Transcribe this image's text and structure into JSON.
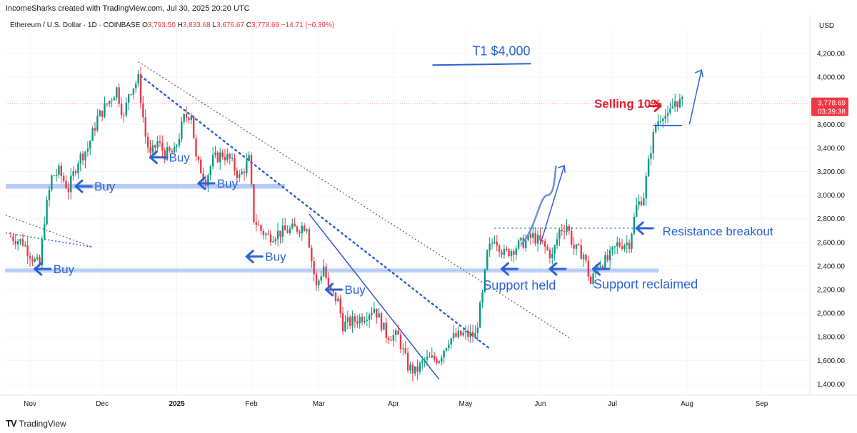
{
  "header": {
    "credit": "IncomeSharks created with TradingView.com, Jul 30, 2025 20:20 UTC",
    "symbol": "Ethereum / U.S. Dollar · 1D · COINBASE",
    "o_label": "O",
    "o_value": "3,793.50",
    "h_label": "H",
    "h_value": "3,833.68",
    "l_label": "L",
    "l_value": "3,676.67",
    "c_label": "C",
    "c_value": "3,778.69",
    "change": "−14.71 (−0.39%)",
    "currency": "USD"
  },
  "footer": {
    "brand": "TradingView",
    "logo": "TV"
  },
  "colors": {
    "up": "#089981",
    "down": "#f23645",
    "annotation": "#2a62d6",
    "selling": "#e5202f",
    "support": "#a9c2f5"
  },
  "chart_data": {
    "type": "candlestick",
    "y_axis": {
      "min": 1300,
      "max": 4300,
      "ticks": [
        "4,200.00",
        "4,000.00",
        "3,800.00",
        "3,600.00",
        "3,400.00",
        "3,200.00",
        "3,000.00",
        "2,800.00",
        "2,600.00",
        "2,400.00",
        "2,200.00",
        "2,000.00",
        "1,800.00",
        "1,600.00",
        "1,400.00"
      ]
    },
    "x_axis": {
      "ticks": [
        {
          "label": "Nov",
          "date": "2024-11-01"
        },
        {
          "label": "Dec",
          "date": "2024-12-01"
        },
        {
          "label": "2025",
          "date": "2025-01-01",
          "bold": true
        },
        {
          "label": "Feb",
          "date": "2025-02-01"
        },
        {
          "label": "Mar",
          "date": "2025-03-01"
        },
        {
          "label": "Apr",
          "date": "2025-04-01"
        },
        {
          "label": "May",
          "date": "2025-05-01"
        },
        {
          "label": "Jun",
          "date": "2025-06-01"
        },
        {
          "label": "Jul",
          "date": "2025-07-01"
        },
        {
          "label": "Aug",
          "date": "2025-08-01"
        },
        {
          "label": "Sep",
          "date": "2025-09-01"
        }
      ]
    },
    "current_price": {
      "value": 3778.69,
      "label": "3,778.69",
      "countdown": "03:39:38"
    },
    "price_path": [
      {
        "date": "2024-10-24",
        "price": 2650
      },
      {
        "date": "2024-10-29",
        "price": 2600
      },
      {
        "date": "2024-11-03",
        "price": 2440
      },
      {
        "date": "2024-11-05",
        "price": 2400
      },
      {
        "date": "2024-11-07",
        "price": 2800
      },
      {
        "date": "2024-11-10",
        "price": 3150
      },
      {
        "date": "2024-11-13",
        "price": 3200
      },
      {
        "date": "2024-11-17",
        "price": 3050
      },
      {
        "date": "2024-11-21",
        "price": 3300
      },
      {
        "date": "2024-11-25",
        "price": 3400
      },
      {
        "date": "2024-11-29",
        "price": 3650
      },
      {
        "date": "2024-12-04",
        "price": 3800
      },
      {
        "date": "2024-12-07",
        "price": 3900
      },
      {
        "date": "2024-12-10",
        "price": 3650
      },
      {
        "date": "2024-12-12",
        "price": 3870
      },
      {
        "date": "2024-12-16",
        "price": 3980
      },
      {
        "date": "2024-12-19",
        "price": 3500
      },
      {
        "date": "2024-12-21",
        "price": 3330
      },
      {
        "date": "2024-12-24",
        "price": 3450
      },
      {
        "date": "2024-12-27",
        "price": 3350
      },
      {
        "date": "2024-12-31",
        "price": 3360
      },
      {
        "date": "2025-01-04",
        "price": 3650
      },
      {
        "date": "2025-01-07",
        "price": 3700
      },
      {
        "date": "2025-01-09",
        "price": 3300
      },
      {
        "date": "2025-01-13",
        "price": 3130
      },
      {
        "date": "2025-01-16",
        "price": 3300
      },
      {
        "date": "2025-01-20",
        "price": 3350
      },
      {
        "date": "2025-01-23",
        "price": 3300
      },
      {
        "date": "2025-01-27",
        "price": 3150
      },
      {
        "date": "2025-01-31",
        "price": 3300
      },
      {
        "date": "2025-02-02",
        "price": 2800
      },
      {
        "date": "2025-02-05",
        "price": 2700
      },
      {
        "date": "2025-02-08",
        "price": 2650
      },
      {
        "date": "2025-02-12",
        "price": 2680
      },
      {
        "date": "2025-02-16",
        "price": 2700
      },
      {
        "date": "2025-02-20",
        "price": 2720
      },
      {
        "date": "2025-02-24",
        "price": 2750
      },
      {
        "date": "2025-02-26",
        "price": 2450
      },
      {
        "date": "2025-02-28",
        "price": 2220
      },
      {
        "date": "2025-03-03",
        "price": 2400
      },
      {
        "date": "2025-03-05",
        "price": 2200
      },
      {
        "date": "2025-03-09",
        "price": 2100
      },
      {
        "date": "2025-03-11",
        "price": 1900
      },
      {
        "date": "2025-03-15",
        "price": 1930
      },
      {
        "date": "2025-03-20",
        "price": 1980
      },
      {
        "date": "2025-03-24",
        "price": 2050
      },
      {
        "date": "2025-03-29",
        "price": 1820
      },
      {
        "date": "2025-04-03",
        "price": 1800
      },
      {
        "date": "2025-04-07",
        "price": 1550
      },
      {
        "date": "2025-04-10",
        "price": 1500
      },
      {
        "date": "2025-04-14",
        "price": 1600
      },
      {
        "date": "2025-04-20",
        "price": 1620
      },
      {
        "date": "2025-04-24",
        "price": 1780
      },
      {
        "date": "2025-04-30",
        "price": 1820
      },
      {
        "date": "2025-05-05",
        "price": 1810
      },
      {
        "date": "2025-05-08",
        "price": 2150
      },
      {
        "date": "2025-05-10",
        "price": 2500
      },
      {
        "date": "2025-05-13",
        "price": 2650
      },
      {
        "date": "2025-05-17",
        "price": 2500
      },
      {
        "date": "2025-05-21",
        "price": 2550
      },
      {
        "date": "2025-05-25",
        "price": 2600
      },
      {
        "date": "2025-05-29",
        "price": 2650
      },
      {
        "date": "2025-06-02",
        "price": 2580
      },
      {
        "date": "2025-06-06",
        "price": 2480
      },
      {
        "date": "2025-06-09",
        "price": 2700
      },
      {
        "date": "2025-06-12",
        "price": 2750
      },
      {
        "date": "2025-06-15",
        "price": 2550
      },
      {
        "date": "2025-06-19",
        "price": 2500
      },
      {
        "date": "2025-06-22",
        "price": 2250
      },
      {
        "date": "2025-06-25",
        "price": 2420
      },
      {
        "date": "2025-06-29",
        "price": 2450
      },
      {
        "date": "2025-07-03",
        "price": 2580
      },
      {
        "date": "2025-07-08",
        "price": 2600
      },
      {
        "date": "2025-07-11",
        "price": 2900
      },
      {
        "date": "2025-07-14",
        "price": 3000
      },
      {
        "date": "2025-07-17",
        "price": 3400
      },
      {
        "date": "2025-07-19",
        "price": 3600
      },
      {
        "date": "2025-07-22",
        "price": 3700
      },
      {
        "date": "2025-07-24",
        "price": 3650
      },
      {
        "date": "2025-07-27",
        "price": 3800
      },
      {
        "date": "2025-07-30",
        "price": 3779
      }
    ],
    "annotations": {
      "target": {
        "label": "T1 $4,000"
      },
      "selling": {
        "label": "Selling 10%"
      },
      "resistance": {
        "label": "Resistance breakout"
      },
      "support_held": {
        "label": "Support held"
      },
      "support_reclaimed": {
        "label": "Support reclaimed"
      },
      "buy_labels": [
        "Buy",
        "Buy",
        "Buy",
        "Buy",
        "Buy",
        "Buy"
      ]
    }
  }
}
